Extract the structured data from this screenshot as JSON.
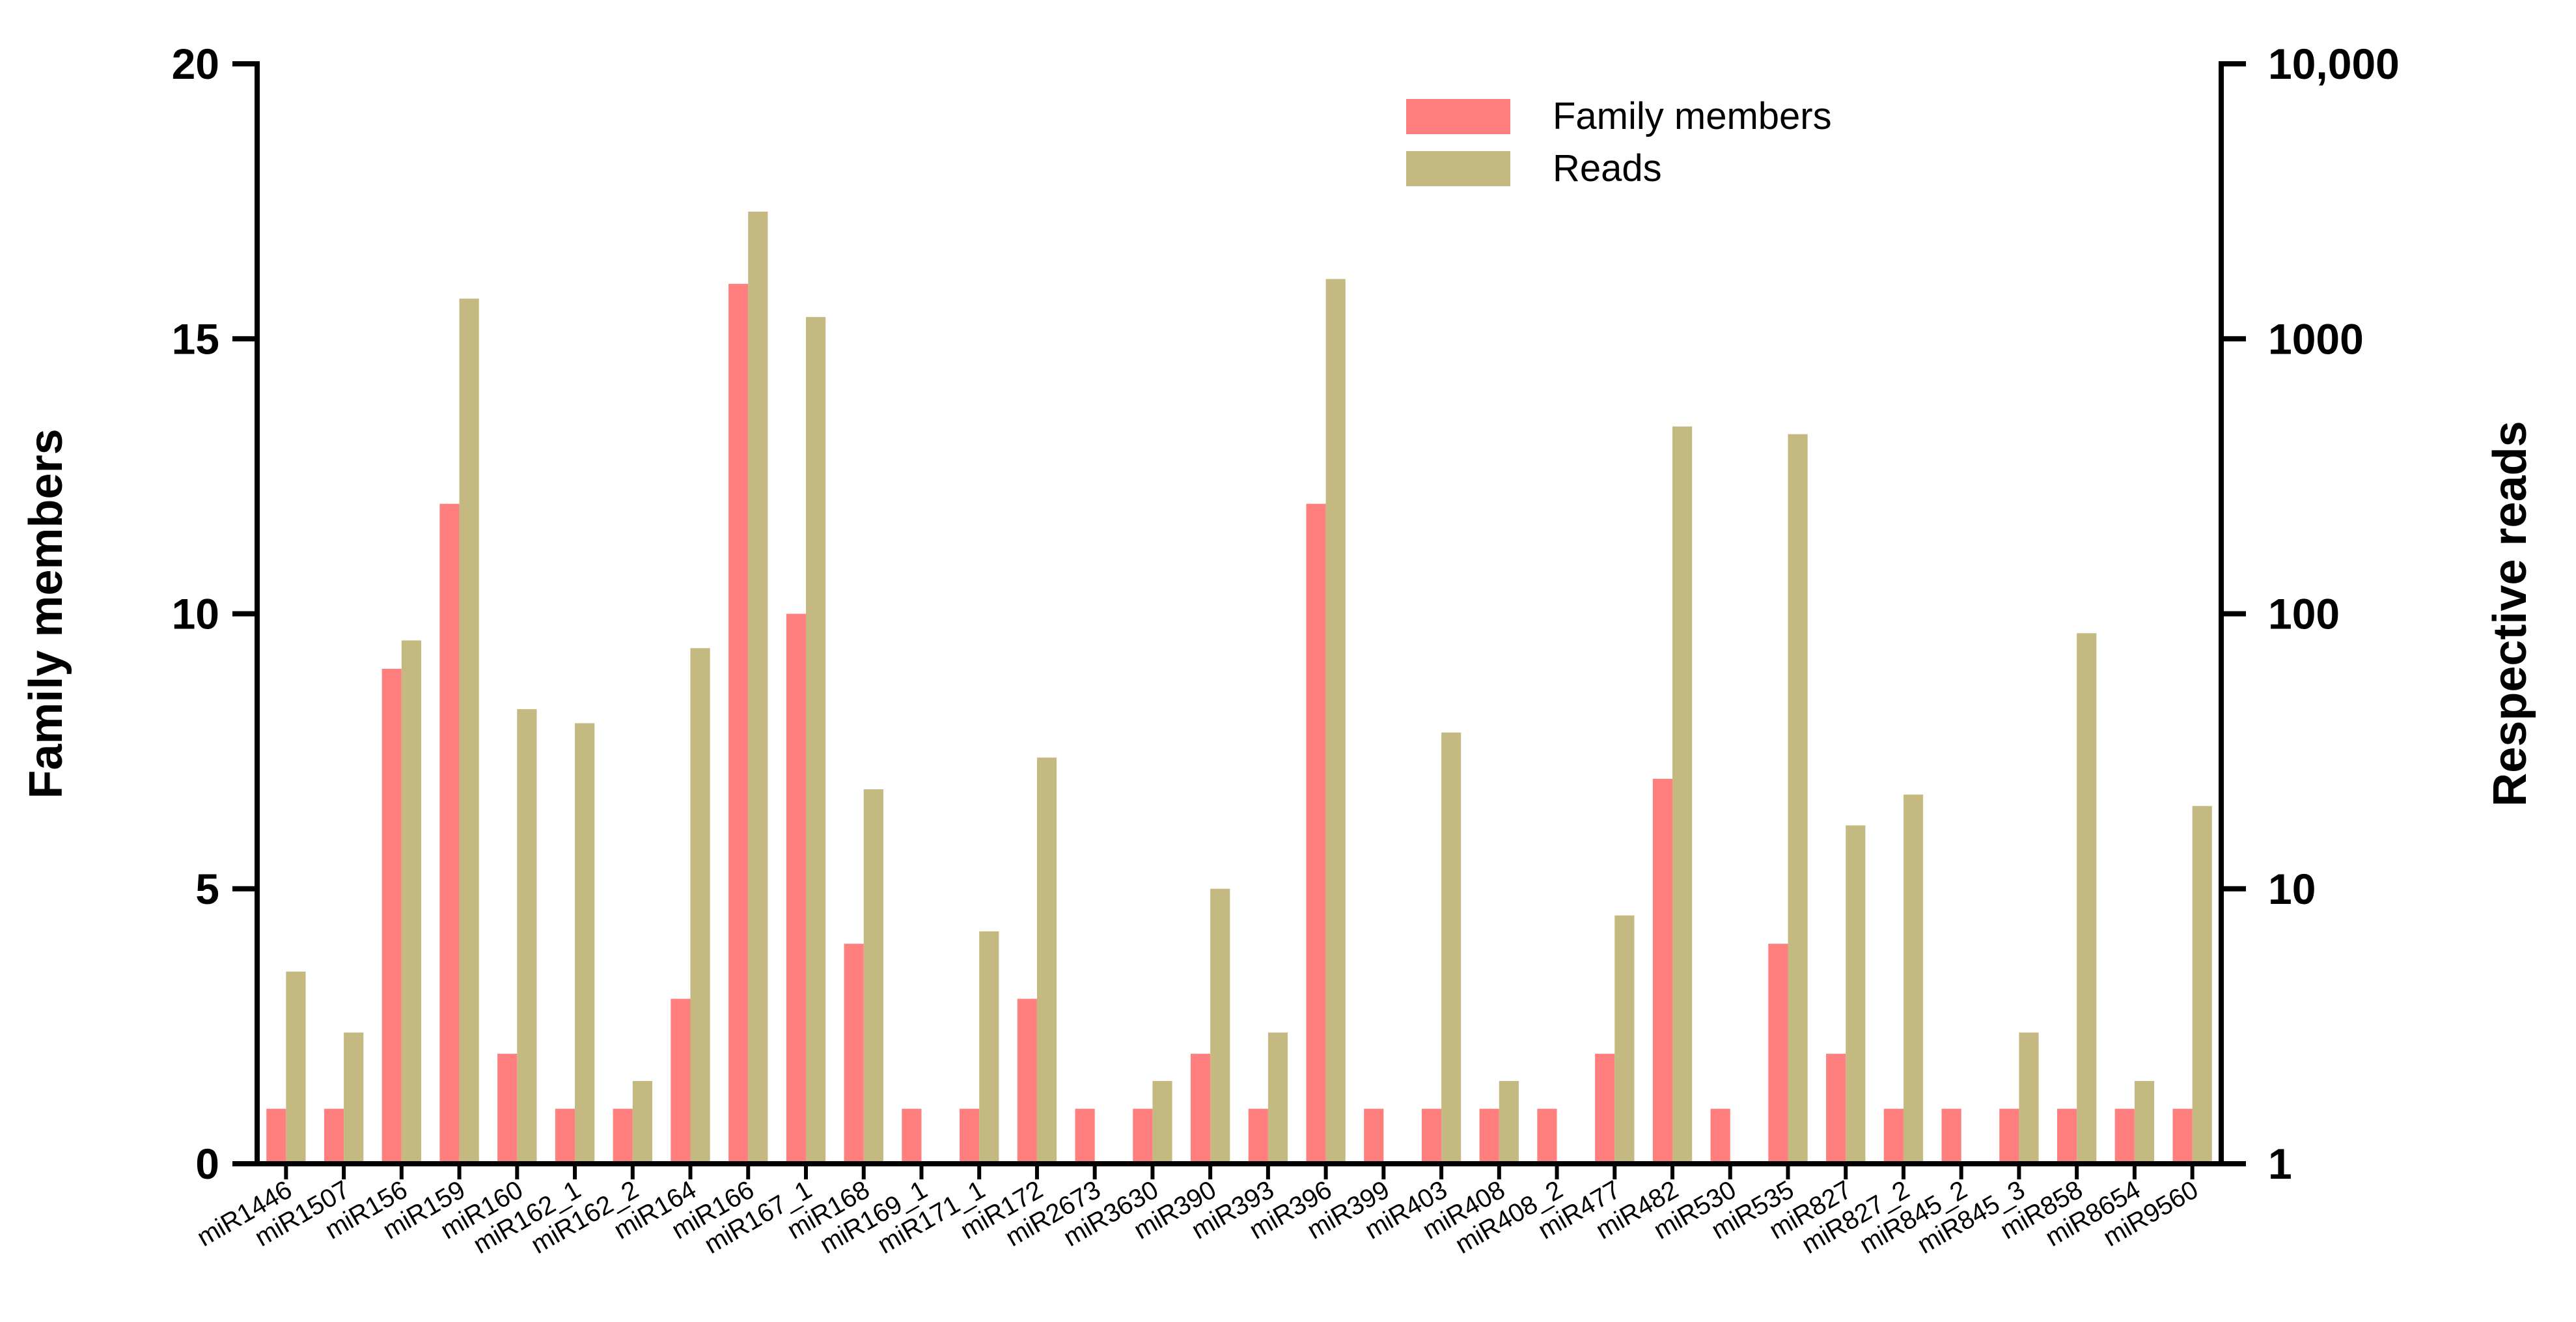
{
  "chart_data": {
    "type": "bar",
    "categories": [
      "miR1446",
      "miR1507",
      "miR156",
      "miR159",
      "miR160",
      "miR162_1",
      "miR162_2",
      "miR164",
      "miR166",
      "miR167_1",
      "miR168",
      "miR169_1",
      "miR171_1",
      "miR172",
      "miR2673",
      "miR3630",
      "miR390",
      "miR393",
      "miR396",
      "miR399",
      "miR403",
      "miR408",
      "miR408_2",
      "miR477",
      "miR482",
      "miR530",
      "miR535",
      "miR827",
      "miR827_2",
      "miR845_2",
      "miR845_3",
      "miR858",
      "miR8654",
      "miR9560"
    ],
    "series": [
      {
        "name": "Family members",
        "axis": "left",
        "color": "#FF7F7F",
        "values": [
          1,
          1,
          9,
          12,
          2,
          1,
          1,
          3,
          16,
          10,
          4,
          1,
          1,
          3,
          1,
          1,
          2,
          1,
          12,
          1,
          1,
          1,
          1,
          2,
          7,
          1,
          4,
          2,
          1,
          1,
          1,
          1,
          1,
          1
        ]
      },
      {
        "name": "Reads",
        "axis": "right",
        "color": "#C4B980",
        "values": [
          5,
          3,
          80,
          1400,
          45,
          40,
          2,
          75,
          2900,
          1200,
          23,
          1,
          7,
          30,
          1,
          2,
          10,
          3,
          1650,
          1,
          37,
          2,
          1,
          8,
          480,
          1,
          450,
          17,
          22,
          1,
          3,
          85,
          2,
          20
        ]
      }
    ],
    "left_axis": {
      "label": "Family members",
      "ylim": [
        0,
        20
      ],
      "ticks": [
        "0",
        "5",
        "10",
        "15",
        "20"
      ]
    },
    "right_axis": {
      "label": "Respective reads",
      "scale": "log",
      "ylim": [
        1,
        10000
      ],
      "ticks": [
        "1",
        "10",
        "100",
        "1000",
        "10,000"
      ]
    },
    "legend": {
      "position": "top-center",
      "entries": [
        "Family members",
        "Reads"
      ]
    }
  }
}
